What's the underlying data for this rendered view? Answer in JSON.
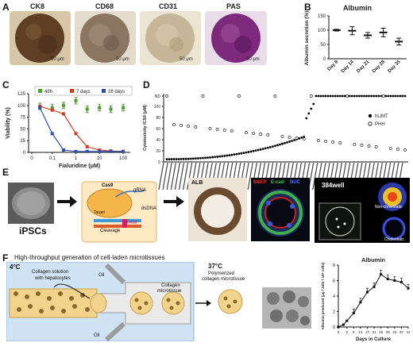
{
  "panels": {
    "A": {
      "label": "A",
      "images": [
        {
          "title": "CK8",
          "scale": "50 μm",
          "color": "#6b4a2e"
        },
        {
          "title": "CD68",
          "scale": "50 μm",
          "color": "#8a7a68"
        },
        {
          "title": "CD31",
          "scale": "50 μm",
          "color": "#b7a98f"
        },
        {
          "title": "PAS",
          "scale": "50 μm",
          "color": "#7a2a78"
        }
      ]
    },
    "B": {
      "label": "B"
    },
    "C": {
      "label": "C"
    },
    "D": {
      "label": "D"
    },
    "E": {
      "label": "E",
      "ipsc": "iPSCs",
      "cas9": "Cas9",
      "grna": "gRNA",
      "target": "Target",
      "cleavage": "Cleavage",
      "pam": "PAM",
      "dsdna": "dsDNA",
      "alb": "ALB",
      "bsep": "BSEP",
      "ecad": "E-cad",
      "nuc": "NUC",
      "well": "384well",
      "noncholestatic": "Non-cholestatic",
      "cholestatic": "Cholestatic"
    },
    "F": {
      "label": "F",
      "heading": "High-throughput generation of cell-laden microtissues",
      "temp_cold": "4°C",
      "temp_warm": "37°C",
      "collagen_solution": "Collagen solution",
      "with_hep": "with hepatocytes",
      "oil": "Oil",
      "collagen": "Collagen",
      "microtissue": "microtissue",
      "polymerized": "Polymerized",
      "collagen_microtissue": "collagen microtissue"
    }
  },
  "chart_data": [
    {
      "panel": "B",
      "type": "scatter",
      "title": "Albumin",
      "ylabel": "Albumin secretion (%)",
      "categories": [
        "Day 8",
        "Day 14",
        "Day 21",
        "Day 28",
        "Day 35"
      ],
      "values": [
        100,
        98,
        82,
        92,
        60
      ],
      "errors": [
        3,
        14,
        10,
        15,
        12
      ],
      "ylim": [
        0,
        150
      ],
      "yticks": [
        0,
        50,
        100,
        150
      ]
    },
    {
      "panel": "C",
      "type": "line",
      "xlabel": "Fialuridine (μM)",
      "ylabel": "Viability (%)",
      "xscale": "log",
      "xticks": [
        "0",
        "0.1",
        "1",
        "10",
        "100"
      ],
      "yticks": [
        0,
        25,
        50,
        75,
        100,
        125
      ],
      "ylim": [
        0,
        125
      ],
      "series": [
        {
          "name": "48h",
          "color": "#4aa02c",
          "x": [
            0.03,
            0.1,
            0.3,
            1,
            3,
            10,
            30,
            100
          ],
          "y": [
            98,
            95,
            100,
            110,
            92,
            95,
            92,
            95
          ]
        },
        {
          "name": "7 days",
          "color": "#d23a1f",
          "x": [
            0.03,
            0.1,
            0.3,
            1,
            3,
            10,
            30,
            100
          ],
          "y": [
            98,
            90,
            82,
            40,
            12,
            5,
            3,
            2
          ]
        },
        {
          "name": "28 days",
          "color": "#2c4fb0",
          "x": [
            0.03,
            0.1,
            0.3,
            1,
            3,
            10,
            30,
            100
          ],
          "y": [
            95,
            40,
            5,
            2,
            2,
            2,
            2,
            2
          ]
        }
      ]
    },
    {
      "panel": "D",
      "type": "scatter",
      "ylabel": "Cytotoxicity IC50 (μM)",
      "yticks": [
        "0",
        "20",
        "40",
        "60",
        "80",
        "100",
        "ND"
      ],
      "series": [
        {
          "name": "hLiMT",
          "color": "#000000"
        },
        {
          "name": "PHH",
          "color": "#ffffff"
        }
      ]
    },
    {
      "panel": "F",
      "type": "line",
      "title": "Albumin",
      "xlabel": "Days in Culture",
      "ylabel": "Albumin produced (μg / 24hr / 10⁶ cells)",
      "x": [
        0,
        3,
        5,
        9,
        13,
        17,
        21,
        25,
        29,
        33,
        37,
        41
      ],
      "y": [
        0,
        0.3,
        0.8,
        1.8,
        3.2,
        4.5,
        5.2,
        6.8,
        6.2,
        6.0,
        5.8,
        5.0
      ],
      "xticks": [
        0,
        5,
        9,
        13,
        17,
        21,
        25,
        29,
        33,
        37,
        41
      ],
      "yticks": [
        0,
        2,
        4,
        6,
        8
      ],
      "ylim": [
        0,
        8
      ]
    }
  ]
}
